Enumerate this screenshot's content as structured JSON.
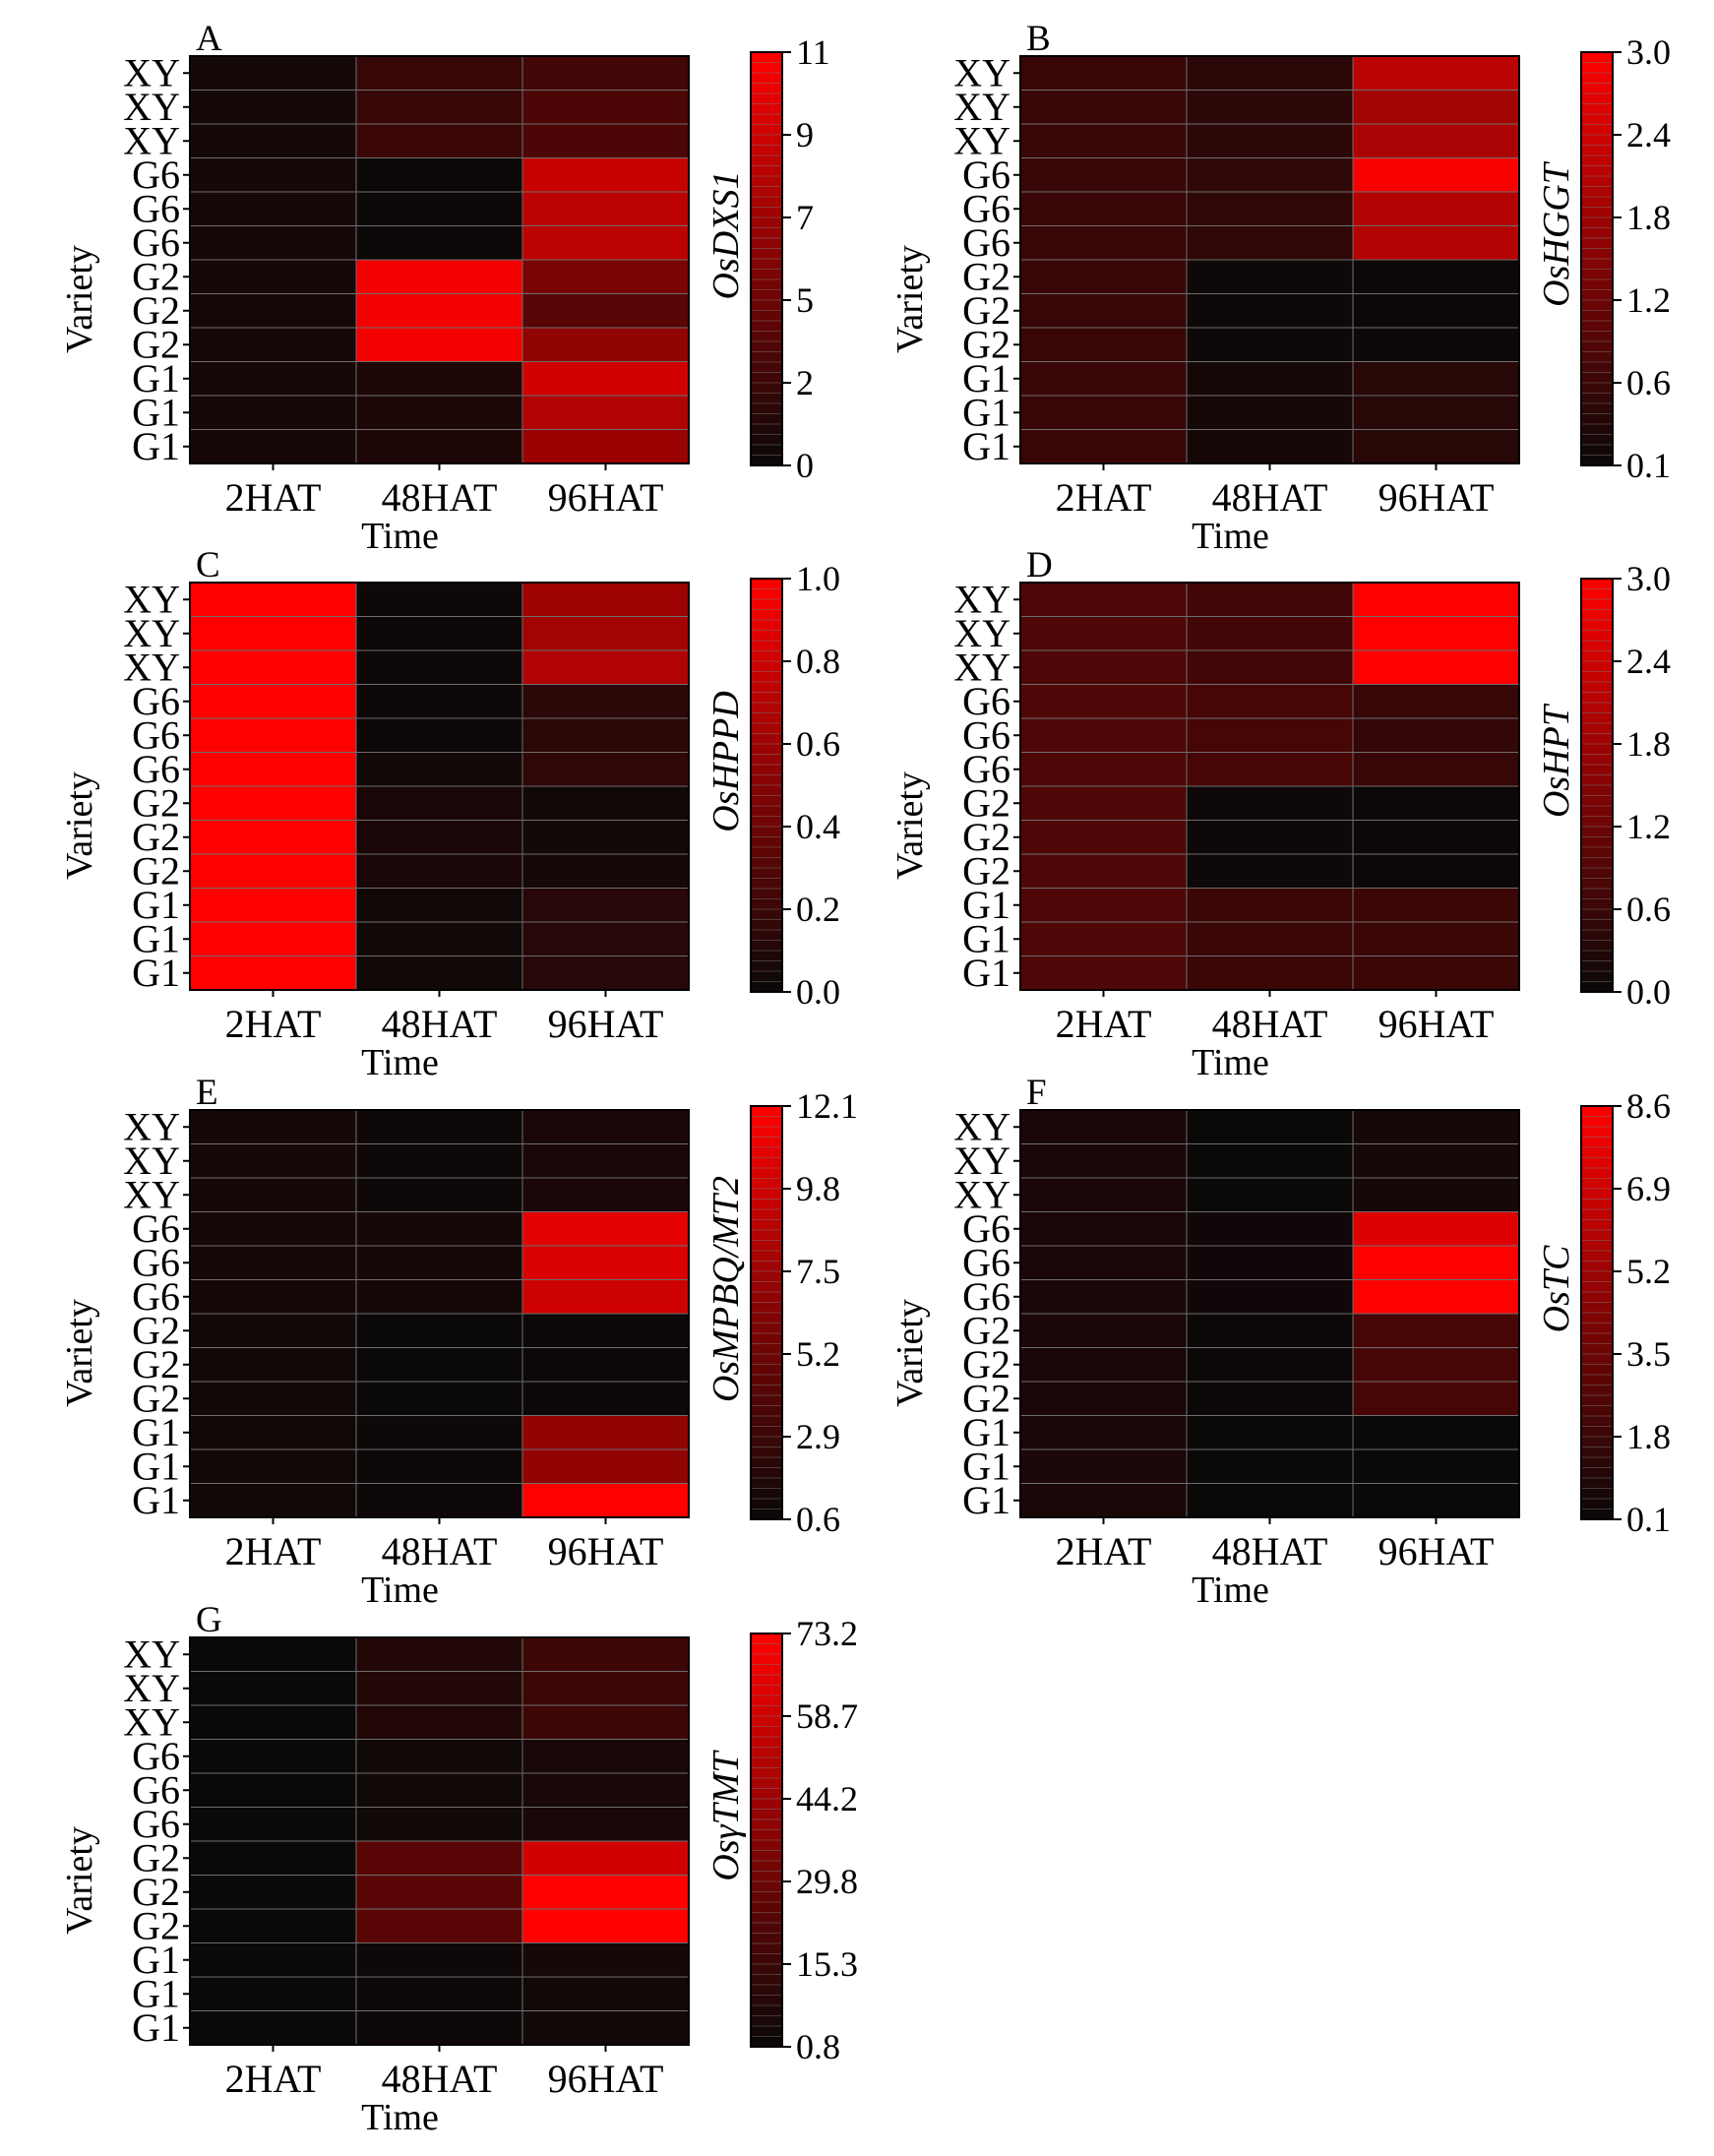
{
  "chart_data": [
    {
      "type": "heatmap",
      "panel": "A",
      "gene": "OsDXS1",
      "xlabel": "Time",
      "ylabel": "Variety",
      "x": [
        "2HAT",
        "48HAT",
        "96HAT"
      ],
      "y": [
        "XY",
        "XY",
        "XY",
        "G6",
        "G6",
        "G6",
        "G2",
        "G2",
        "G2",
        "G1",
        "G1",
        "G1"
      ],
      "values": [
        [
          0.5,
          2.0,
          2.5
        ],
        [
          0.5,
          2.0,
          3.0
        ],
        [
          0.5,
          2.2,
          3.0
        ],
        [
          0.6,
          0.1,
          8.5
        ],
        [
          0.6,
          0.1,
          8.0
        ],
        [
          0.6,
          0.1,
          8.0
        ],
        [
          0.6,
          10.5,
          5.0
        ],
        [
          0.6,
          10.5,
          3.5
        ],
        [
          0.6,
          10.5,
          6.0
        ],
        [
          0.6,
          0.9,
          9.0
        ],
        [
          0.6,
          0.9,
          7.5
        ],
        [
          0.6,
          0.9,
          6.5
        ]
      ],
      "colorbar": {
        "min": 0,
        "max": 11,
        "ticks": [
          "11",
          "9",
          "7",
          "5",
          "2",
          "0"
        ]
      }
    },
    {
      "type": "heatmap",
      "panel": "B",
      "gene": "OsHGGT",
      "xlabel": "Time",
      "ylabel": "Variety",
      "x": [
        "2HAT",
        "48HAT",
        "96HAT"
      ],
      "y": [
        "XY",
        "XY",
        "XY",
        "G6",
        "G6",
        "G6",
        "G2",
        "G2",
        "G2",
        "G1",
        "G1",
        "G1"
      ],
      "values": [
        [
          0.65,
          0.5,
          2.2
        ],
        [
          0.65,
          0.5,
          1.9
        ],
        [
          0.65,
          0.5,
          2.0
        ],
        [
          0.65,
          0.55,
          2.9
        ],
        [
          0.65,
          0.55,
          2.1
        ],
        [
          0.65,
          0.55,
          2.1
        ],
        [
          0.65,
          0.15,
          0.12
        ],
        [
          0.65,
          0.15,
          0.12
        ],
        [
          0.65,
          0.15,
          0.15
        ],
        [
          0.65,
          0.25,
          0.45
        ],
        [
          0.65,
          0.25,
          0.45
        ],
        [
          0.65,
          0.25,
          0.45
        ]
      ],
      "colorbar": {
        "min": 0.1,
        "max": 3.0,
        "ticks": [
          "3.0",
          "2.4",
          "1.8",
          "1.2",
          "0.6",
          "0.1"
        ]
      }
    },
    {
      "type": "heatmap",
      "panel": "C",
      "gene": "OsHPPD",
      "xlabel": "Time",
      "ylabel": "Variety",
      "x": [
        "2HAT",
        "48HAT",
        "96HAT"
      ],
      "y": [
        "XY",
        "XY",
        "XY",
        "G6",
        "G6",
        "G6",
        "G2",
        "G2",
        "G2",
        "G1",
        "G1",
        "G1"
      ],
      "values": [
        [
          1.0,
          0.02,
          0.6
        ],
        [
          1.0,
          0.02,
          0.62
        ],
        [
          1.0,
          0.02,
          0.68
        ],
        [
          1.0,
          0.02,
          0.14
        ],
        [
          1.0,
          0.02,
          0.14
        ],
        [
          1.0,
          0.03,
          0.15
        ],
        [
          1.0,
          0.07,
          0.03
        ],
        [
          1.0,
          0.07,
          0.03
        ],
        [
          1.0,
          0.07,
          0.04
        ],
        [
          1.0,
          0.03,
          0.12
        ],
        [
          1.0,
          0.03,
          0.12
        ],
        [
          1.0,
          0.03,
          0.12
        ]
      ],
      "colorbar": {
        "min": 0.0,
        "max": 1.0,
        "ticks": [
          "1.0",
          "0.8",
          "0.6",
          "0.4",
          "0.2",
          "0.0"
        ]
      }
    },
    {
      "type": "heatmap",
      "panel": "D",
      "gene": "OsHPT",
      "xlabel": "Time",
      "ylabel": "Variety",
      "x": [
        "2HAT",
        "48HAT",
        "96HAT"
      ],
      "y": [
        "XY",
        "XY",
        "XY",
        "G6",
        "G6",
        "G6",
        "G2",
        "G2",
        "G2",
        "G1",
        "G1",
        "G1"
      ],
      "values": [
        [
          0.85,
          0.7,
          3.0
        ],
        [
          0.85,
          0.7,
          3.0
        ],
        [
          0.85,
          0.7,
          3.0
        ],
        [
          0.85,
          0.75,
          0.55
        ],
        [
          0.85,
          0.75,
          0.5
        ],
        [
          0.85,
          0.75,
          0.55
        ],
        [
          0.85,
          0.05,
          0.03
        ],
        [
          0.85,
          0.05,
          0.03
        ],
        [
          0.85,
          0.05,
          0.03
        ],
        [
          0.85,
          0.6,
          0.6
        ],
        [
          0.85,
          0.6,
          0.6
        ],
        [
          0.85,
          0.6,
          0.6
        ]
      ],
      "colorbar": {
        "min": 0.0,
        "max": 3.0,
        "ticks": [
          "3.0",
          "2.4",
          "1.8",
          "1.2",
          "0.6",
          "0.0"
        ]
      }
    },
    {
      "type": "heatmap",
      "panel": "E",
      "gene": "OsMPBQ/MT2",
      "xlabel": "Time",
      "ylabel": "Variety",
      "x": [
        "2HAT",
        "48HAT",
        "96HAT"
      ],
      "y": [
        "XY",
        "XY",
        "XY",
        "G6",
        "G6",
        "G6",
        "G2",
        "G2",
        "G2",
        "G1",
        "G1",
        "G1"
      ],
      "values": [
        [
          1.2,
          0.8,
          1.4
        ],
        [
          1.2,
          0.8,
          1.4
        ],
        [
          1.2,
          0.8,
          1.4
        ],
        [
          1.2,
          1.2,
          10.8
        ],
        [
          1.2,
          1.2,
          10.3
        ],
        [
          1.2,
          1.2,
          9.8
        ],
        [
          1.0,
          0.6,
          0.7
        ],
        [
          1.0,
          0.6,
          0.7
        ],
        [
          1.0,
          0.6,
          0.7
        ],
        [
          1.0,
          0.8,
          7.0
        ],
        [
          1.0,
          0.8,
          7.0
        ],
        [
          1.0,
          0.8,
          12.1
        ]
      ],
      "colorbar": {
        "min": 0.6,
        "max": 12.1,
        "ticks": [
          "12.1",
          "9.8",
          "7.5",
          "5.2",
          "2.9",
          "0.6"
        ]
      }
    },
    {
      "type": "heatmap",
      "panel": "F",
      "gene": "OsTC",
      "xlabel": "Time",
      "ylabel": "Variety",
      "x": [
        "2HAT",
        "48HAT",
        "96HAT"
      ],
      "y": [
        "XY",
        "XY",
        "XY",
        "G6",
        "G6",
        "G6",
        "G2",
        "G2",
        "G2",
        "G1",
        "G1",
        "G1"
      ],
      "values": [
        [
          0.7,
          0.15,
          0.5
        ],
        [
          0.7,
          0.15,
          0.5
        ],
        [
          0.7,
          0.15,
          0.5
        ],
        [
          0.7,
          0.3,
          7.5
        ],
        [
          0.7,
          0.3,
          8.6
        ],
        [
          0.7,
          0.3,
          8.6
        ],
        [
          0.7,
          0.2,
          2.2
        ],
        [
          0.7,
          0.2,
          2.2
        ],
        [
          0.7,
          0.2,
          2.2
        ],
        [
          0.7,
          0.15,
          0.15
        ],
        [
          0.7,
          0.15,
          0.15
        ],
        [
          0.7,
          0.15,
          0.15
        ]
      ],
      "colorbar": {
        "min": 0.1,
        "max": 8.6,
        "ticks": [
          "8.6",
          "6.9",
          "5.2",
          "3.5",
          "1.8",
          "0.1"
        ]
      }
    },
    {
      "type": "heatmap",
      "panel": "G",
      "gene": "OsγTMT",
      "xlabel": "Time",
      "ylabel": "Variety",
      "x": [
        "2HAT",
        "48HAT",
        "96HAT"
      ],
      "y": [
        "XY",
        "XY",
        "XY",
        "G6",
        "G6",
        "G6",
        "G2",
        "G2",
        "G2",
        "G1",
        "G1",
        "G1"
      ],
      "values": [
        [
          1.0,
          8.0,
          16.0
        ],
        [
          1.0,
          8.0,
          16.0
        ],
        [
          1.0,
          8.0,
          16.0
        ],
        [
          1.0,
          3.0,
          5.0
        ],
        [
          1.0,
          3.0,
          5.0
        ],
        [
          1.0,
          3.0,
          5.0
        ],
        [
          1.0,
          24.0,
          60.0
        ],
        [
          1.0,
          24.0,
          73.2
        ],
        [
          1.0,
          24.0,
          73.2
        ],
        [
          1.0,
          2.0,
          4.0
        ],
        [
          1.0,
          2.0,
          3.0
        ],
        [
          1.0,
          2.0,
          3.0
        ]
      ],
      "colorbar": {
        "min": 0.8,
        "max": 73.2,
        "ticks": [
          "73.2",
          "58.7",
          "44.2",
          "29.8",
          "15.3",
          "0.8"
        ]
      }
    }
  ]
}
